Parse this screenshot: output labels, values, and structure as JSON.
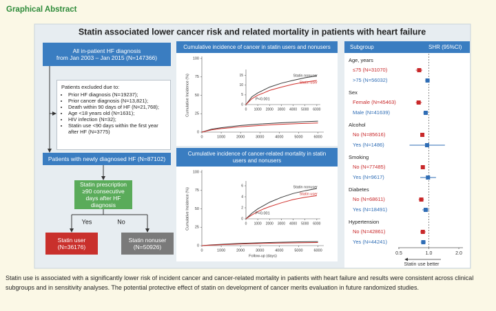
{
  "header": {
    "title": "Graphical Abstract"
  },
  "panel": {
    "title": "Statin associated lower cancer risk and related mortality in patients with heart failure"
  },
  "flowchart": {
    "nodes": [
      {
        "lines": [
          "All in-patient HF diagnosis",
          "from Jan 2003 – Jan 2015 (N=147366)"
        ]
      },
      {
        "label": "Patients with newly diagnosed HF (N=87102)"
      },
      {
        "label": "Statin prescription ≥90 consecutive days after HF diagnosis"
      },
      {
        "label": "Statin user (N=36176)"
      },
      {
        "label": "Statin nonuser (N=50926)"
      }
    ],
    "exclusions": {
      "heading": "Patients excluded due to:",
      "items": [
        "Prior HF diagnosis (N=19237);",
        "Prior cancer diagnosis (N=13,821);",
        "Death within 90 days of HF (N=21,768);",
        "Age <18 years old (N=1631);",
        "HIV infection (N=32);",
        "Statin use <90 days within the first year after HF (N=3775)"
      ]
    },
    "edges": [
      {
        "label": "Yes"
      },
      {
        "label": "No"
      }
    ]
  },
  "charts": [
    {
      "type": "line",
      "title": "Cumulative incidence of cancer in statin users and nonusers",
      "y_label": "Cumulative Incidence (%)",
      "xlim": [
        0,
        6300
      ],
      "ylim": [
        0,
        100
      ],
      "xticks": [
        0,
        1000,
        2000,
        3000,
        4000,
        5000,
        6000
      ],
      "yticks": [
        0,
        25,
        50,
        75,
        100
      ],
      "x": [
        0,
        500,
        1000,
        1500,
        2000,
        3000,
        4000,
        5000,
        6000
      ],
      "series": [
        {
          "name": "Statin nonuser",
          "color": "#3a3a3a",
          "values": [
            0,
            4,
            6,
            7.5,
            9,
            11,
            12.5,
            13.8,
            14.8
          ]
        },
        {
          "name": "Statin user",
          "color": "#d0312d",
          "values": [
            0,
            3,
            4.8,
            6,
            7.3,
            9,
            10.5,
            11.6,
            12.4
          ]
        }
      ],
      "inset": {
        "xlim": [
          0,
          6300
        ],
        "ylim": [
          0,
          17
        ],
        "xticks": [
          0,
          1000,
          2000,
          3000,
          4000,
          5000,
          6000
        ],
        "yticks": [
          0,
          5,
          10,
          15
        ],
        "annotation": "P<0.001"
      }
    },
    {
      "type": "line",
      "title": "Cumulative incidence of cancer-related mortality in statin users and nonusers",
      "y_label": "Cumulative Incidence (%)",
      "x_label": "Follow-up (days)",
      "xlim": [
        0,
        6300
      ],
      "ylim": [
        0,
        100
      ],
      "xticks": [
        0,
        1000,
        2000,
        3000,
        4000,
        5000,
        6000
      ],
      "yticks": [
        0,
        25,
        50,
        75,
        100
      ],
      "x": [
        0,
        500,
        1000,
        1500,
        2000,
        3000,
        4000,
        5000,
        6000
      ],
      "series": [
        {
          "name": "Statin nonuser",
          "color": "#3a3a3a",
          "values": [
            0,
            1,
            1.8,
            2.4,
            3,
            3.9,
            4.6,
            5.1,
            5.5
          ]
        },
        {
          "name": "Statin user",
          "color": "#d0312d",
          "values": [
            0,
            0.7,
            1.3,
            1.8,
            2.2,
            2.9,
            3.5,
            3.9,
            4.2
          ]
        }
      ],
      "inset": {
        "xlim": [
          0,
          6300
        ],
        "ylim": [
          0,
          6.5
        ],
        "xticks": [
          0,
          1000,
          2000,
          3000,
          4000,
          5000,
          6000
        ],
        "yticks": [
          0,
          2,
          4,
          6
        ],
        "annotation": "P<0.001"
      }
    }
  ],
  "forest": {
    "header": [
      "Subgroup",
      "SHR (95%CI)"
    ],
    "log_scale": true,
    "xlim": [
      0.4,
      2.2
    ],
    "xticks": [
      0.5,
      {
        "value": 1,
        "label": "1.0"
      },
      {
        "value": 2,
        "label": "2.0"
      }
    ],
    "reference": 1,
    "x_label": "Statin use better",
    "groups": [
      {
        "name": "Age, years",
        "rows": [
          {
            "label": "≤75 (N=31070)",
            "color": "#c8282a",
            "estimate": 0.8,
            "lower": 0.74,
            "upper": 0.86
          },
          {
            "label": ">75 (N=56032)",
            "color": "#2f6db5",
            "estimate": 0.97,
            "lower": 0.92,
            "upper": 1.02
          }
        ]
      },
      {
        "name": "Sex",
        "rows": [
          {
            "label": "Female (N=45463)",
            "color": "#c8282a",
            "estimate": 0.79,
            "lower": 0.74,
            "upper": 0.85
          },
          {
            "label": "Male (N=41639)",
            "color": "#2f6db5",
            "estimate": 0.93,
            "lower": 0.88,
            "upper": 0.98
          }
        ]
      },
      {
        "name": "Alcohol",
        "rows": [
          {
            "label": "No (N=85616)",
            "color": "#c8282a",
            "estimate": 0.86,
            "lower": 0.82,
            "upper": 0.9
          },
          {
            "label": "Yes (N=1486)",
            "color": "#2f6db5",
            "estimate": 0.96,
            "lower": 0.64,
            "upper": 1.45
          }
        ]
      },
      {
        "name": "Smoking",
        "rows": [
          {
            "label": "No (N=77485)",
            "color": "#c8282a",
            "estimate": 0.87,
            "lower": 0.83,
            "upper": 0.91
          },
          {
            "label": "Yes (N=9617)",
            "color": "#2f6db5",
            "estimate": 0.98,
            "lower": 0.82,
            "upper": 1.18
          }
        ]
      },
      {
        "name": "Diabetes",
        "rows": [
          {
            "label": "No (N=68611)",
            "color": "#c8282a",
            "estimate": 0.84,
            "lower": 0.79,
            "upper": 0.89
          },
          {
            "label": "Yes (N=18491)",
            "color": "#2f6db5",
            "estimate": 0.93,
            "lower": 0.86,
            "upper": 1.01
          }
        ]
      },
      {
        "name": "Hypertension",
        "rows": [
          {
            "label": "No (N=42861)",
            "color": "#c8282a",
            "estimate": 0.87,
            "lower": 0.82,
            "upper": 0.93
          },
          {
            "label": "Yes (N=44241)",
            "color": "#2f6db5",
            "estimate": 0.88,
            "lower": 0.83,
            "upper": 0.93
          }
        ]
      }
    ]
  },
  "caption": "Statin use is associated with a significantly lower risk of incident cancer and cancer-related mortality in patients with heart failure and results were consistent across clinical subgroups and in sensitivity analyses. The potential protective effect of statin on development of cancer merits evaluation in future randomized studies."
}
